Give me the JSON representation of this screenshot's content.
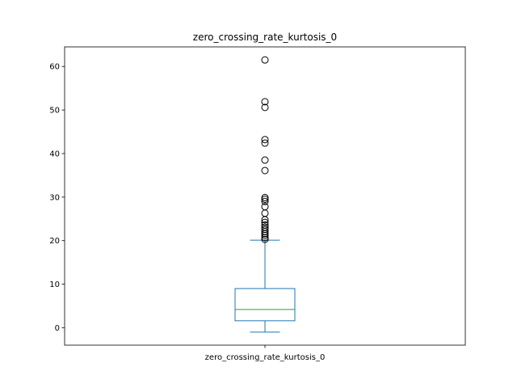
{
  "chart_data": {
    "type": "box",
    "title": "zero_crossing_rate_kurtosis_0",
    "categories": [
      "zero_crossing_rate_kurtosis_0"
    ],
    "ylim": [
      -4.0,
      64.5
    ],
    "yticks": [
      0,
      10,
      20,
      30,
      40,
      50,
      60
    ],
    "grid": false,
    "box": {
      "whisker_low": -1.0,
      "q1": 1.6,
      "median": 4.2,
      "q3": 9.0,
      "whisker_high": 20.1
    },
    "outliers": [
      20.3,
      20.7,
      21.2,
      21.6,
      22.1,
      22.6,
      23.1,
      23.6,
      24.2,
      24.8,
      26.3,
      27.8,
      29.0,
      29.5,
      29.9,
      36.1,
      38.5,
      42.4,
      43.2,
      50.6,
      51.9,
      61.5
    ],
    "colors": {
      "box": "#1f77b4",
      "median": "#2ca02c",
      "outlier": "#000000"
    }
  }
}
